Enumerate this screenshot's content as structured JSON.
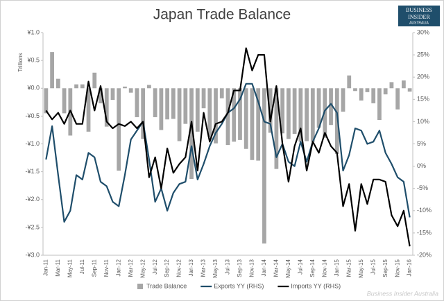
{
  "chart_data": {
    "type": "bar-line",
    "title": "Japan Trade Balance",
    "ylabel": "Trillions",
    "logo": [
      "BUSINESS",
      "INSIDER",
      "AUSTRALIA"
    ],
    "watermark": "Business Insider Australia",
    "categories": [
      "Jan-11",
      null,
      "Mar-11",
      null,
      "May-11",
      null,
      "Jul-11",
      null,
      "Sep-11",
      null,
      "Nov-11",
      null,
      "Jan-12",
      null,
      "Mar-12",
      null,
      "May-12",
      null,
      "Jul-12",
      null,
      "Sep-12",
      null,
      "Nov-12",
      null,
      "Jan-13",
      null,
      "Mar-13",
      null,
      "May-13",
      null,
      "Jul-13",
      null,
      "Sep-13",
      null,
      "Nov-13",
      null,
      "Jan-14",
      null,
      "Mar-14",
      null,
      "May-14",
      null,
      "Jul-14",
      null,
      "Sep-14",
      null,
      "Nov-14",
      null,
      "Jan-15",
      null,
      "Mar-15",
      null,
      "May-15",
      null,
      "Jul-15",
      null,
      "Sep-15",
      null,
      "Nov-15",
      null,
      "Jan-16"
    ],
    "series": [
      {
        "name": "Trade Balance",
        "type": "bar",
        "color": "#a6a6a6",
        "values": [
          -0.45,
          0.65,
          0.17,
          -0.45,
          -0.85,
          0.07,
          0.07,
          -0.78,
          0.28,
          -0.27,
          -0.69,
          -0.21,
          -1.48,
          0.03,
          -0.08,
          -0.52,
          -0.91,
          0.06,
          -0.52,
          -0.75,
          -0.56,
          -0.55,
          -0.95,
          -0.64,
          -1.63,
          -0.78,
          -0.36,
          -0.88,
          -0.99,
          -0.18,
          -1.02,
          -0.96,
          -0.93,
          -1.09,
          -1.29,
          -1.3,
          -2.79,
          -0.8,
          -1.45,
          -0.81,
          -0.91,
          -0.82,
          -0.96,
          -0.95,
          -0.96,
          -0.71,
          -0.89,
          -0.66,
          -1.18,
          -0.42,
          0.23,
          -0.05,
          -0.22,
          -0.07,
          -0.27,
          -0.57,
          -0.11,
          0.11,
          -0.38,
          0.14,
          -0.06
        ]
      },
      {
        "name": "Exports YY (RHS)",
        "type": "line",
        "axis": "y2",
        "color": "#1f4e6b",
        "values": [
          1.5,
          9,
          -2,
          -12.5,
          -10,
          -2,
          -3,
          3,
          2,
          -3.5,
          -4.5,
          -8,
          -9,
          -2,
          6,
          8,
          10,
          1.5,
          -8,
          -5,
          -10,
          -6,
          -4,
          -3.5,
          4.5,
          -3,
          0.5,
          4.5,
          7.5,
          9.5,
          12,
          13,
          15,
          18.5,
          18.5,
          14.5,
          10,
          9.5,
          2,
          5,
          1,
          0,
          5.5,
          1,
          5.5,
          8.5,
          12.5,
          14,
          12,
          -1,
          2.5,
          8.5,
          8,
          5,
          5.5,
          8,
          3,
          0.5,
          -2.5,
          -3.5,
          -11.5
        ]
      },
      {
        "name": "Imports YY (RHS)",
        "type": "line",
        "axis": "y2",
        "color": "#000000",
        "values": [
          12.5,
          10.5,
          12,
          9.5,
          12.5,
          9.5,
          9.5,
          19,
          12.5,
          18,
          10,
          8.5,
          9.5,
          9,
          10,
          8.5,
          10,
          -2.5,
          2,
          -5,
          4,
          -1.5,
          0.5,
          2,
          10,
          -1,
          12,
          5.5,
          9.5,
          10,
          12,
          17,
          17,
          26.5,
          21.5,
          25,
          25,
          10,
          18,
          5,
          -3.5,
          4.5,
          8.5,
          -1,
          5.5,
          3,
          7.5,
          4.5,
          3,
          -9,
          -4,
          -14.5,
          -4,
          -8.5,
          -3,
          -3,
          -3.5,
          -11,
          -13.5,
          -10,
          -18
        ]
      }
    ],
    "ylim": [
      -3,
      1
    ],
    "yticks": [
      {
        "value": -3,
        "label": "-¥3.0"
      },
      {
        "value": -2.5,
        "label": "-¥2.5"
      },
      {
        "value": -2,
        "label": "-¥2.0"
      },
      {
        "value": -1.5,
        "label": "-¥1.5"
      },
      {
        "value": -1,
        "label": "-¥1.0"
      },
      {
        "value": -0.5,
        "label": "-¥0.5"
      },
      {
        "value": 0,
        "label": "¥0.0"
      },
      {
        "value": 0.5,
        "label": "¥0.5"
      },
      {
        "value": 1,
        "label": "¥1.0"
      }
    ],
    "y2lim": [
      -20,
      30
    ],
    "y2ticks": [
      {
        "value": -20,
        "label": "-20%"
      },
      {
        "value": -15,
        "label": "-15%"
      },
      {
        "value": -10,
        "label": "-10%"
      },
      {
        "value": -5,
        "label": "-5%"
      },
      {
        "value": 0,
        "label": "0%"
      },
      {
        "value": 5,
        "label": "5%"
      },
      {
        "value": 10,
        "label": "10%"
      },
      {
        "value": 15,
        "label": "15%"
      },
      {
        "value": 20,
        "label": "20%"
      },
      {
        "value": 25,
        "label": "25%"
      },
      {
        "value": 30,
        "label": "30%"
      }
    ],
    "legend": "bottom"
  }
}
